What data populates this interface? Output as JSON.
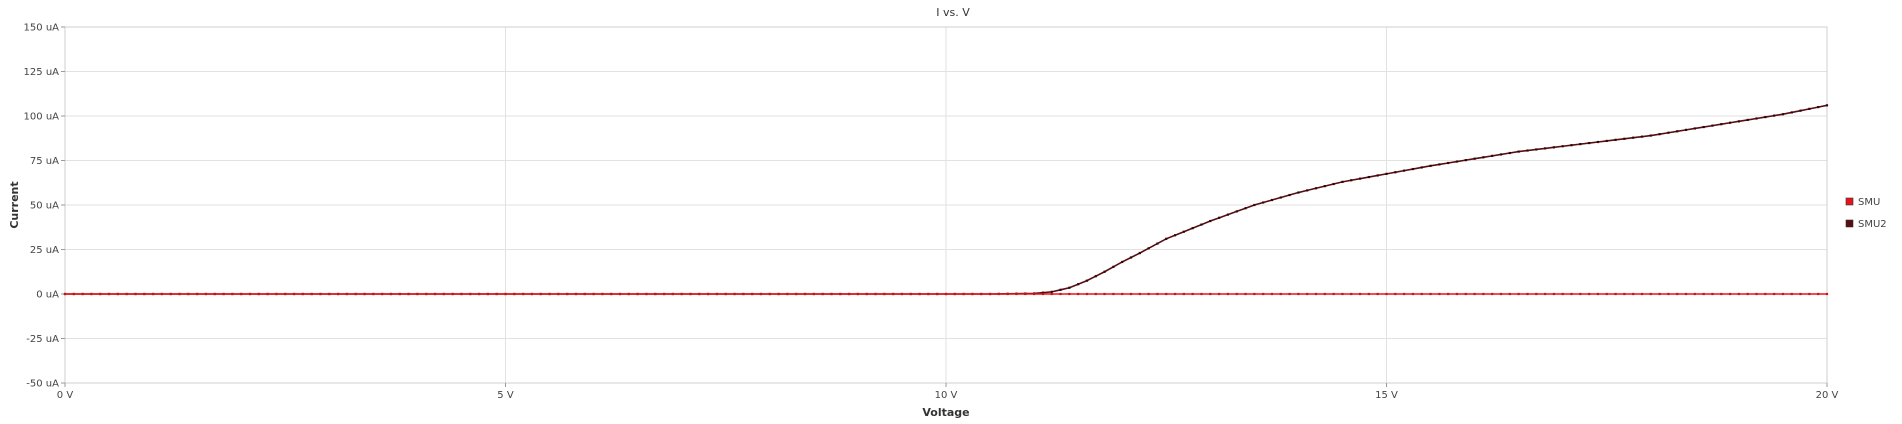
{
  "chart_data": {
    "type": "line",
    "title": "I vs. V",
    "xlabel": "Voltage",
    "ylabel": "Current",
    "xlim": [
      0,
      20
    ],
    "ylim": [
      -50,
      150
    ],
    "x_ticks": [
      {
        "value": 0,
        "label": "0 V"
      },
      {
        "value": 5,
        "label": "5 V"
      },
      {
        "value": 10,
        "label": "10 V"
      },
      {
        "value": 15,
        "label": "15 V"
      },
      {
        "value": 20,
        "label": "20 V"
      }
    ],
    "y_ticks": [
      {
        "value": 150,
        "label": "150 uA"
      },
      {
        "value": 125,
        "label": "125 uA"
      },
      {
        "value": 100,
        "label": "100 uA"
      },
      {
        "value": 75,
        "label": "75 uA"
      },
      {
        "value": 50,
        "label": "50 uA"
      },
      {
        "value": 25,
        "label": "25 uA"
      },
      {
        "value": 0,
        "label": "0 uA"
      },
      {
        "value": -25,
        "label": "-25 uA"
      },
      {
        "value": -50,
        "label": "-50 uA"
      }
    ],
    "grid": true,
    "legend_position": "right",
    "series": [
      {
        "name": "SMU",
        "color": "#e8141c",
        "x": [
          0,
          20
        ],
        "y": [
          0,
          0
        ]
      },
      {
        "name": "SMU2",
        "color": "#5a0c10",
        "x": [
          0,
          1,
          2,
          3,
          4,
          5,
          6,
          7,
          8,
          9,
          10,
          10.5,
          11,
          11.2,
          11.4,
          11.6,
          11.8,
          12,
          12.2,
          12.5,
          12.8,
          13,
          13.5,
          14,
          14.5,
          15,
          15.5,
          16,
          16.5,
          17,
          17.5,
          18,
          18.5,
          19,
          19.5,
          20
        ],
        "y": [
          0,
          0,
          0,
          0,
          0,
          0,
          0,
          0,
          0,
          0,
          0,
          0,
          0.3,
          1.2,
          3.5,
          7.5,
          12.5,
          18,
          23,
          31,
          37,
          41,
          50,
          57,
          63,
          67.5,
          72,
          76,
          80,
          83,
          86,
          89,
          93,
          97,
          101,
          106
        ]
      }
    ]
  }
}
